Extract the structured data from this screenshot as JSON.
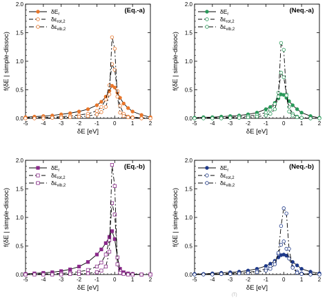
{
  "chart_data": [
    {
      "type": "line",
      "title": "(Eq.-a)",
      "xlabel": "δE [eV]",
      "ylabel": "f(δE | simple-dissoc)",
      "xlim": [
        -5,
        2
      ],
      "ylim": [
        0,
        2.0
      ],
      "xticks": [
        "-5",
        "-4",
        "-3",
        "-2",
        "-1",
        "0",
        "1",
        "2"
      ],
      "yticks": [
        "0.0",
        "0.5",
        "1.0",
        "1.5",
        "2.0"
      ],
      "legend_position": "top-left",
      "color": "#e8762b",
      "marker": "circle",
      "series": [
        {
          "name": "δE_r",
          "base": "δE",
          "sub": "r",
          "dash": "solid",
          "x": [
            -5,
            -4.5,
            -4,
            -3.5,
            -3,
            -2.5,
            -2,
            -1.5,
            -1,
            -0.75,
            -0.5,
            -0.3,
            -0.15,
            0,
            0.15,
            0.3,
            0.5,
            0.75,
            1,
            1.5,
            2
          ],
          "y": [
            0.02,
            0.03,
            0.04,
            0.05,
            0.07,
            0.09,
            0.12,
            0.16,
            0.23,
            0.29,
            0.38,
            0.48,
            0.57,
            0.54,
            0.45,
            0.36,
            0.26,
            0.18,
            0.12,
            0.06,
            0.02
          ]
        },
        {
          "name": "δε_rot,2",
          "base": "δε",
          "sub": "rot,2",
          "dash": "long",
          "x": [
            -5,
            -4.5,
            -4,
            -3.5,
            -3,
            -2.5,
            -2,
            -1.5,
            -1,
            -0.75,
            -0.5,
            -0.3,
            -0.15,
            0,
            0.15,
            0.3,
            0.5,
            0.75,
            1,
            1.5,
            2
          ],
          "y": [
            0.01,
            0.01,
            0.02,
            0.02,
            0.03,
            0.04,
            0.06,
            0.08,
            0.13,
            0.2,
            0.33,
            0.58,
            0.95,
            0.85,
            0.48,
            0.22,
            0.08,
            0.03,
            0.02,
            0.01,
            0.0
          ]
        },
        {
          "name": "δε_vib,2",
          "base": "δε",
          "sub": "vib,2",
          "dash": "dashdot",
          "x": [
            -5,
            -4.5,
            -4,
            -3.5,
            -3,
            -2.5,
            -2,
            -1.5,
            -1,
            -0.75,
            -0.5,
            -0.3,
            -0.15,
            0,
            0.15,
            0.3,
            0.5,
            0.75,
            1,
            1.5,
            2
          ],
          "y": [
            0.0,
            0.0,
            0.0,
            0.01,
            0.01,
            0.02,
            0.03,
            0.04,
            0.07,
            0.11,
            0.2,
            0.42,
            1.42,
            1.22,
            0.38,
            0.1,
            0.04,
            0.02,
            0.01,
            0.0,
            0.0
          ]
        }
      ]
    },
    {
      "type": "line",
      "title": "(Neq.-a)",
      "xlabel": "δE [eV]",
      "ylabel": "f(δE | simple-dissoc)",
      "xlim": [
        -5,
        2
      ],
      "ylim": [
        0,
        2.0
      ],
      "xticks": [
        "-5",
        "-4",
        "-3",
        "-2",
        "-1",
        "0",
        "1",
        "2"
      ],
      "yticks": [
        "0.0",
        "0.5",
        "1.0",
        "1.5",
        "2.0"
      ],
      "legend_position": "top-left",
      "color": "#2a9a5a",
      "marker": "circle",
      "series": [
        {
          "name": "δE_r",
          "base": "δE",
          "sub": "r",
          "dash": "solid",
          "x": [
            -5,
            -4.5,
            -4,
            -3.5,
            -3,
            -2.5,
            -2,
            -1.5,
            -1,
            -0.75,
            -0.5,
            -0.3,
            -0.15,
            0,
            0.15,
            0.3,
            0.5,
            0.75,
            1,
            1.5,
            2
          ],
          "y": [
            0.01,
            0.02,
            0.02,
            0.03,
            0.04,
            0.05,
            0.07,
            0.1,
            0.16,
            0.2,
            0.27,
            0.35,
            0.42,
            0.41,
            0.36,
            0.3,
            0.23,
            0.16,
            0.1,
            0.04,
            0.01
          ]
        },
        {
          "name": "δε_rot,2",
          "base": "δε",
          "sub": "rot,2",
          "dash": "long",
          "x": [
            -5,
            -4.5,
            -4,
            -3.5,
            -3,
            -2.5,
            -2,
            -1.5,
            -1,
            -0.75,
            -0.5,
            -0.3,
            -0.15,
            0,
            0.15,
            0.3,
            0.5,
            0.75,
            1,
            1.5,
            2
          ],
          "y": [
            0.0,
            0.01,
            0.01,
            0.01,
            0.02,
            0.03,
            0.04,
            0.06,
            0.1,
            0.15,
            0.25,
            0.45,
            0.8,
            0.72,
            0.42,
            0.2,
            0.08,
            0.03,
            0.01,
            0.0,
            0.0
          ]
        },
        {
          "name": "δε_vib,2",
          "base": "δε",
          "sub": "vib,2",
          "dash": "dashdot",
          "x": [
            -5,
            -4.5,
            -4,
            -3.5,
            -3,
            -2.5,
            -2,
            -1.5,
            -1,
            -0.75,
            -0.5,
            -0.3,
            -0.15,
            0,
            0.15,
            0.3,
            0.5,
            0.75,
            1,
            1.5,
            2
          ],
          "y": [
            0.0,
            0.0,
            0.0,
            0.0,
            0.01,
            0.01,
            0.02,
            0.03,
            0.05,
            0.08,
            0.16,
            0.38,
            1.32,
            1.2,
            0.4,
            0.12,
            0.05,
            0.02,
            0.01,
            0.0,
            0.0
          ]
        }
      ]
    },
    {
      "type": "line",
      "title": "(Eq.-b)",
      "xlabel": "δE [eV]",
      "ylabel": "f(δE | simple-dissoc)",
      "xlim": [
        -5,
        2
      ],
      "ylim": [
        0,
        2.0
      ],
      "xticks": [
        "-5",
        "-4",
        "-3",
        "-2",
        "-1",
        "0",
        "1",
        "2"
      ],
      "yticks": [
        "0.0",
        "0.5",
        "1.0",
        "1.5",
        "2.0"
      ],
      "legend_position": "top-left",
      "color": "#8a2a8a",
      "marker": "square",
      "series": [
        {
          "name": "δE_r",
          "base": "δE",
          "sub": "r",
          "dash": "solid",
          "x": [
            -5,
            -4.5,
            -4,
            -3.5,
            -3,
            -2.5,
            -2,
            -1.5,
            -1,
            -0.75,
            -0.5,
            -0.3,
            -0.15,
            0,
            0.15,
            0.3,
            0.5,
            0.75,
            1,
            1.5,
            2
          ],
          "y": [
            0.01,
            0.02,
            0.03,
            0.04,
            0.06,
            0.09,
            0.14,
            0.22,
            0.35,
            0.44,
            0.55,
            0.66,
            0.76,
            0.62,
            0.3,
            0.1,
            0.04,
            0.02,
            0.01,
            0.0,
            0.0
          ]
        },
        {
          "name": "δε_rot,2",
          "base": "δε",
          "sub": "rot,2",
          "dash": "long",
          "x": [
            -5,
            -4.5,
            -4,
            -3.5,
            -3,
            -2.5,
            -2,
            -1.5,
            -1,
            -0.75,
            -0.5,
            -0.3,
            -0.15,
            0,
            0.15,
            0.3,
            0.5,
            0.75,
            1,
            1.5,
            2
          ],
          "y": [
            0.0,
            0.01,
            0.01,
            0.01,
            0.02,
            0.03,
            0.05,
            0.08,
            0.14,
            0.21,
            0.35,
            0.6,
            1.25,
            1.05,
            0.3,
            0.06,
            0.02,
            0.01,
            0.0,
            0.0,
            0.0
          ]
        },
        {
          "name": "δε_vib,2",
          "base": "δε",
          "sub": "vib,2",
          "dash": "dashdot",
          "x": [
            -5,
            -4.5,
            -4,
            -3.5,
            -3,
            -2.5,
            -2,
            -1.5,
            -1,
            -0.75,
            -0.5,
            -0.3,
            -0.15,
            0,
            0.15,
            0.3,
            0.5,
            0.75,
            1,
            1.5,
            2
          ],
          "y": [
            0.0,
            0.0,
            0.0,
            0.0,
            0.0,
            0.01,
            0.01,
            0.02,
            0.04,
            0.07,
            0.14,
            0.4,
            1.92,
            1.55,
            0.18,
            0.03,
            0.01,
            0.0,
            0.0,
            0.0,
            0.0
          ]
        }
      ]
    },
    {
      "type": "line",
      "title": "(Neq.-b)",
      "xlabel": "δE [eV]",
      "ylabel": "f(δE | simple-dissoc)",
      "xlim": [
        -5,
        2
      ],
      "ylim": [
        0,
        2.0
      ],
      "xticks": [
        "-5",
        "-4",
        "-3",
        "-2",
        "-1",
        "0",
        "1",
        "2"
      ],
      "yticks": [
        "0.0",
        "0.5",
        "1.0",
        "1.5",
        "2.0"
      ],
      "legend_position": "top-left",
      "color": "#1f3a8a",
      "marker": "circle",
      "series": [
        {
          "name": "δE_r",
          "base": "δE",
          "sub": "r",
          "dash": "solid",
          "x": [
            -5,
            -4.5,
            -4,
            -3.5,
            -3,
            -2.5,
            -2,
            -1.5,
            -1,
            -0.75,
            -0.5,
            -0.3,
            -0.15,
            0,
            0.15,
            0.3,
            0.5,
            0.75,
            1,
            1.5,
            2
          ],
          "y": [
            0.01,
            0.01,
            0.02,
            0.03,
            0.04,
            0.05,
            0.07,
            0.1,
            0.15,
            0.19,
            0.24,
            0.3,
            0.34,
            0.35,
            0.33,
            0.28,
            0.22,
            0.16,
            0.1,
            0.05,
            0.02
          ]
        },
        {
          "name": "δε_rot,2",
          "base": "δε",
          "sub": "rot,2",
          "dash": "long",
          "x": [
            -5,
            -4.5,
            -4,
            -3.5,
            -3,
            -2.5,
            -2,
            -1.5,
            -1,
            -0.75,
            -0.5,
            -0.3,
            -0.15,
            0,
            0.15,
            0.3,
            0.5,
            0.75,
            1,
            1.5,
            2
          ],
          "y": [
            0.0,
            0.01,
            0.01,
            0.01,
            0.02,
            0.03,
            0.04,
            0.06,
            0.1,
            0.14,
            0.22,
            0.36,
            0.52,
            0.58,
            0.45,
            0.28,
            0.13,
            0.05,
            0.02,
            0.01,
            0.0
          ]
        },
        {
          "name": "δε_vib,2",
          "base": "δε",
          "sub": "vib,2",
          "dash": "dashdot",
          "x": [
            -5,
            -4.5,
            -4,
            -3.5,
            -3,
            -2.5,
            -2,
            -1.5,
            -1,
            -0.75,
            -0.5,
            -0.3,
            -0.15,
            0,
            0.15,
            0.3,
            0.5,
            0.75,
            1,
            1.5,
            2
          ],
          "y": [
            0.0,
            0.0,
            0.0,
            0.01,
            0.01,
            0.02,
            0.03,
            0.04,
            0.07,
            0.1,
            0.18,
            0.38,
            0.85,
            1.16,
            1.07,
            0.45,
            0.12,
            0.03,
            0.01,
            0.0,
            0.0
          ]
        }
      ]
    }
  ],
  "footer_text": "(T)"
}
